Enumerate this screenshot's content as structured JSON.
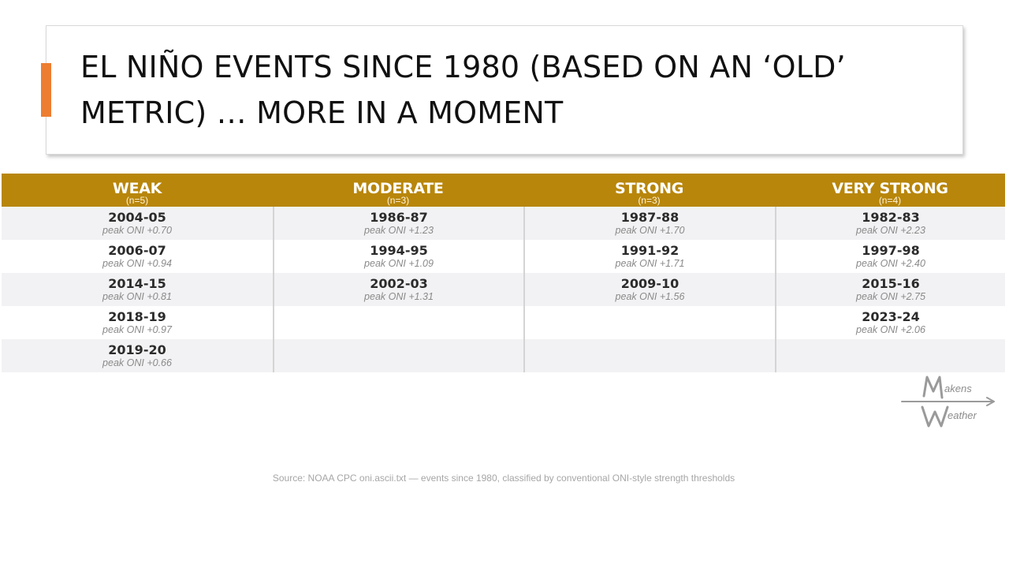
{
  "slide": {
    "title": "EL NIÑO EVENTS SINCE 1980 (BASED ON AN ‘OLD’ METRIC) … MORE IN A MOMENT",
    "source": "Source: NOAA CPC oni.ascii.txt — events since 1980, classified by conventional ONI-style strength thresholds",
    "accent_color": "#ed7d31",
    "header_color": "#b8860b"
  },
  "logo": {
    "line1": "akens",
    "line2": "eather"
  },
  "table": {
    "columns": [
      {
        "label": "WEAK",
        "count": "(n=5)"
      },
      {
        "label": "MODERATE",
        "count": "(n=3)"
      },
      {
        "label": "STRONG",
        "count": "(n=3)"
      },
      {
        "label": "VERY STRONG",
        "count": "(n=4)"
      }
    ],
    "rows": [
      [
        {
          "year": "2004-05",
          "peak": "peak ONI +0.70"
        },
        {
          "year": "1986-87",
          "peak": "peak ONI +1.23"
        },
        {
          "year": "1987-88",
          "peak": "peak ONI +1.70"
        },
        {
          "year": "1982-83",
          "peak": "peak ONI +2.23"
        }
      ],
      [
        {
          "year": "2006-07",
          "peak": "peak ONI +0.94"
        },
        {
          "year": "1994-95",
          "peak": "peak ONI +1.09"
        },
        {
          "year": "1991-92",
          "peak": "peak ONI +1.71"
        },
        {
          "year": "1997-98",
          "peak": "peak ONI +2.40"
        }
      ],
      [
        {
          "year": "2014-15",
          "peak": "peak ONI +0.81"
        },
        {
          "year": "2002-03",
          "peak": "peak ONI +1.31"
        },
        {
          "year": "2009-10",
          "peak": "peak ONI +1.56"
        },
        {
          "year": "2015-16",
          "peak": "peak ONI +2.75"
        }
      ],
      [
        {
          "year": "2018-19",
          "peak": "peak ONI +0.97"
        },
        {
          "year": "",
          "peak": ""
        },
        {
          "year": "",
          "peak": ""
        },
        {
          "year": "2023-24",
          "peak": "peak ONI +2.06"
        }
      ],
      [
        {
          "year": "2019-20",
          "peak": "peak ONI +0.66"
        },
        {
          "year": "",
          "peak": ""
        },
        {
          "year": "",
          "peak": ""
        },
        {
          "year": "",
          "peak": ""
        }
      ]
    ]
  }
}
